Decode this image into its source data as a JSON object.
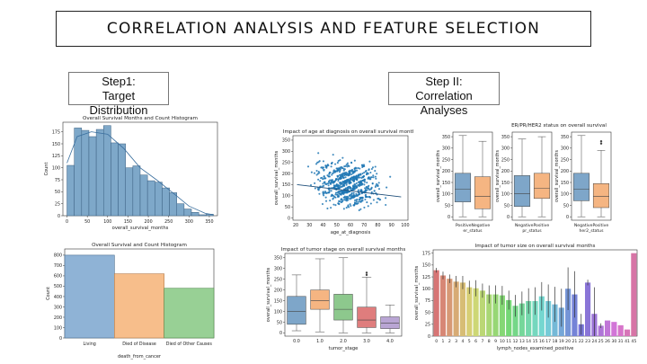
{
  "slide": {
    "title": "CORRELATION ANALYSIS AND FEATURE SELECTION",
    "step1": {
      "line1": "Step1:",
      "line2": "Target Distribution"
    },
    "step2": {
      "line1": "Step II:",
      "line2": "Correlation Analyses"
    }
  },
  "colors": {
    "hist": "#7ea8c9",
    "living": "#8fb3d6",
    "died_cancer": "#f7be8b",
    "died_other": "#98d095",
    "scatter": "#1f77b4",
    "box_blue": "#7ea6c9",
    "box_orange": "#f5b582",
    "box_green": "#8dc88d",
    "box_red": "#df7d7d",
    "box_purple": "#b9a5d4"
  },
  "chart_data": [
    {
      "type": "bar",
      "title": "Overall Survival Months and Count Histogram",
      "xlabel": "overall_survival_months",
      "ylabel": "Count",
      "x_ticks": [
        0,
        50,
        100,
        150,
        200,
        250,
        300,
        350
      ],
      "y_ticks": [
        0,
        25,
        50,
        75,
        100,
        125,
        150,
        175
      ],
      "xlim": [
        -10,
        370
      ],
      "ylim": [
        0,
        195
      ],
      "bin_width": 18,
      "bin_starts": [
        0,
        18,
        36,
        54,
        72,
        90,
        108,
        126,
        144,
        162,
        180,
        198,
        216,
        234,
        252,
        270,
        288,
        306,
        324,
        342
      ],
      "values": [
        105,
        183,
        178,
        165,
        180,
        188,
        152,
        150,
        100,
        104,
        85,
        73,
        70,
        58,
        48,
        25,
        14,
        7,
        2,
        3
      ],
      "kde": [
        [
          0,
          110
        ],
        [
          25,
          165
        ],
        [
          60,
          175
        ],
        [
          100,
          170
        ],
        [
          140,
          140
        ],
        [
          180,
          100
        ],
        [
          220,
          75
        ],
        [
          260,
          48
        ],
        [
          300,
          20
        ],
        [
          340,
          5
        ],
        [
          360,
          2
        ]
      ]
    },
    {
      "type": "bar",
      "title": "Overall Survival and Count Histogram",
      "xlabel": "death_from_cancer",
      "ylabel": "Count",
      "categories": [
        "Living",
        "Died of Disease",
        "Died of Other Causes"
      ],
      "values": [
        800,
        620,
        480
      ],
      "y_ticks": [
        0,
        100,
        200,
        300,
        400,
        500,
        600,
        700,
        800
      ],
      "ylim": [
        0,
        860
      ]
    },
    {
      "type": "scatter",
      "title": "Impact of age at diagnosis on overall survival months",
      "xlabel": "age_at_diagnosis",
      "ylabel": "overall_survival_months",
      "x_ticks": [
        20,
        30,
        40,
        50,
        60,
        70,
        80,
        90,
        100
      ],
      "y_ticks": [
        0,
        50,
        100,
        150,
        200,
        250,
        300,
        350
      ],
      "xlim": [
        18,
        102
      ],
      "ylim": [
        -10,
        370
      ],
      "trend": [
        [
          21,
          150
        ],
        [
          97,
          95
        ]
      ]
    },
    {
      "type": "box",
      "title": "",
      "panels": [
        {
          "xlabel": "er_status",
          "tick_label": "PositiveNegative",
          "categories": [
            "Positive",
            "Negative"
          ],
          "boxes": [
            {
              "min": 0,
              "q1": 65,
              "median": 120,
              "q3": 190,
              "max": 355
            },
            {
              "min": 0,
              "q1": 35,
              "median": 90,
              "q3": 175,
              "max": 330
            }
          ]
        },
        {
          "xlabel": "pr_status",
          "tick_label": "NegativePositive",
          "categories": [
            "Negative",
            "Positive"
          ],
          "boxes": [
            {
              "min": 0,
              "q1": 45,
              "median": 100,
              "q3": 180,
              "max": 340
            },
            {
              "min": 0,
              "q1": 80,
              "median": 125,
              "q3": 190,
              "max": 350
            }
          ]
        },
        {
          "xlabel": "her2_status",
          "tick_label": "NegativePositive",
          "categories": [
            "Negative",
            "Positive"
          ],
          "boxes": [
            {
              "min": 0,
              "q1": 70,
              "median": 120,
              "q3": 190,
              "max": 355
            },
            {
              "min": 0,
              "q1": 40,
              "median": 90,
              "q3": 145,
              "max": 290,
              "outliers": [
                320,
                330
              ]
            }
          ]
        }
      ],
      "suptitle": "ER/PR/HER2 status on overall survival",
      "ylabel": "overall_survival_months",
      "y_ticks": [
        0,
        50,
        100,
        150,
        200,
        250,
        300,
        350
      ],
      "ylim": [
        -15,
        370
      ]
    },
    {
      "type": "box",
      "title": "Impact of tumor stage on overall survival months",
      "xlabel": "tumor_stage",
      "ylabel": "overall_survival_months",
      "categories": [
        "0.0",
        "1.0",
        "2.0",
        "3.0",
        "4.0"
      ],
      "boxes": [
        {
          "min": 10,
          "q1": 40,
          "median": 100,
          "q3": 170,
          "max": 270
        },
        {
          "min": 5,
          "q1": 110,
          "median": 150,
          "q3": 200,
          "max": 345
        },
        {
          "min": 0,
          "q1": 60,
          "median": 110,
          "q3": 180,
          "max": 350
        },
        {
          "min": 0,
          "q1": 25,
          "median": 60,
          "q3": 120,
          "max": 260,
          "outliers": [
            270,
            280
          ]
        },
        {
          "min": 0,
          "q1": 20,
          "median": 45,
          "q3": 75,
          "max": 130
        }
      ],
      "y_ticks": [
        0,
        50,
        100,
        150,
        200,
        250,
        300,
        350
      ],
      "ylim": [
        -15,
        370
      ]
    },
    {
      "type": "bar",
      "title": "Impact of tumor size on overall survival months",
      "xlabel": "lymph_nodes_examined_positive",
      "ylabel": "overall_survival_months",
      "categories": [
        "0",
        "1",
        "2",
        "3",
        "4",
        "5",
        "6",
        "7",
        "8",
        "9",
        "10",
        "11",
        "12",
        "13",
        "14",
        "15",
        "16",
        "17",
        "18",
        "19",
        "20",
        "21",
        "22",
        "23",
        "24",
        "25",
        "26",
        "30",
        "31",
        "41",
        "45"
      ],
      "values": [
        139,
        128,
        121,
        115,
        113,
        103,
        101,
        96,
        88,
        88,
        86,
        76,
        64,
        69,
        74,
        74,
        84,
        74,
        67,
        60,
        100,
        88,
        25,
        113,
        47,
        22,
        33,
        30,
        23,
        14,
        175
      ],
      "errors": [
        5,
        8,
        9,
        12,
        14,
        14,
        17,
        15,
        19,
        19,
        20,
        20,
        23,
        25,
        27,
        29,
        30,
        35,
        37,
        40,
        45,
        49,
        22,
        6,
        56,
        5,
        0,
        0,
        0,
        0,
        0
      ],
      "y_ticks": [
        0,
        25,
        50,
        75,
        100,
        125,
        150,
        175
      ],
      "ylim": [
        0,
        182
      ]
    }
  ]
}
